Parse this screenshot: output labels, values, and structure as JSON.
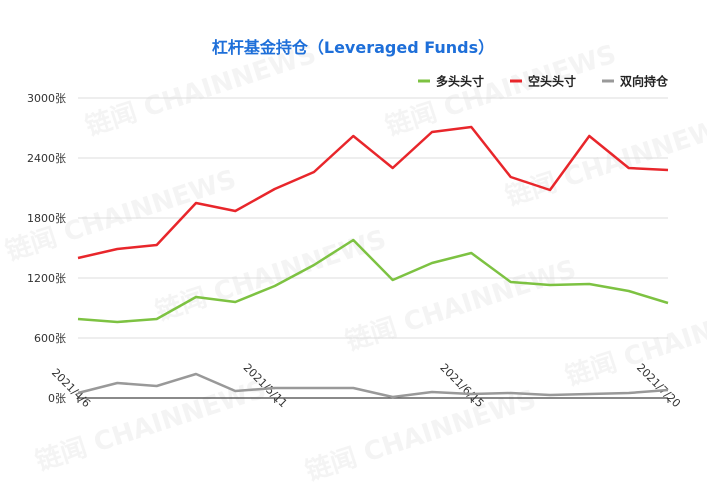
{
  "chart_data": {
    "type": "line",
    "title": "杠杆基金持仓（Leveraged Funds）",
    "x_labels": [
      "2021/4/6",
      "2021/5/11",
      "2021/6/15",
      "2021/7/20"
    ],
    "x_label_indices": [
      0,
      5,
      10,
      15
    ],
    "num_points": 16,
    "ylim": [
      0,
      3000
    ],
    "yticks": [
      0,
      600,
      1200,
      1800,
      2400,
      3000
    ],
    "ytick_labels": [
      "0张",
      "600张",
      "1200张",
      "1800张",
      "2400张",
      "3000张"
    ],
    "grid": true,
    "legend_position": "top-right",
    "series": [
      {
        "name": "多头头寸",
        "color": "#7dc242",
        "values": [
          790,
          760,
          790,
          1010,
          960,
          1120,
          1330,
          1580,
          1180,
          1350,
          1450,
          1160,
          1130,
          1140,
          1070,
          950
        ]
      },
      {
        "name": "空头头寸",
        "color": "#e8262b",
        "values": [
          1400,
          1490,
          1530,
          1950,
          1870,
          2090,
          2260,
          2620,
          2300,
          2660,
          2710,
          2210,
          2080,
          2620,
          2300,
          2280
        ]
      },
      {
        "name": "双向持仓",
        "color": "#999999",
        "values": [
          50,
          150,
          120,
          240,
          70,
          100,
          100,
          100,
          10,
          60,
          40,
          50,
          30,
          40,
          50,
          80
        ]
      }
    ]
  },
  "watermark": "链闻 CHAINNEWS"
}
